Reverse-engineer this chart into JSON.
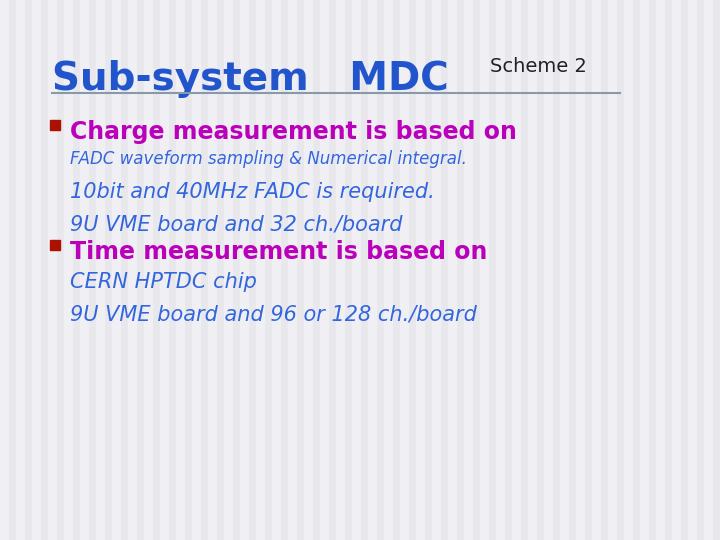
{
  "background_color": "#e8e8ec",
  "stripe_color": "#f0f0f4",
  "title_sub_system": "Sub-system   MDC",
  "title_scheme": "Scheme 2",
  "title_color_main": "#2255cc",
  "title_color_scheme": "#222222",
  "separator_color": "#8899aa",
  "bullet_color": "#aa1100",
  "bullet1_header": "Charge measurement is based on",
  "bullet1_header_color": "#bb00bb",
  "bullet1_line1": "FADC waveform sampling & Numerical integral.",
  "bullet1_line1_color": "#3366dd",
  "bullet1_line2": "10bit and 40MHz FADC is required.",
  "bullet1_line2_color": "#3366dd",
  "bullet1_line3": "9U VME board and 32 ch./board",
  "bullet1_line3_color": "#3366dd",
  "bullet2_header": "Time measurement is based on",
  "bullet2_header_color": "#bb00bb",
  "bullet2_line1": "CERN HPTDC chip",
  "bullet2_line1_color": "#3366dd",
  "bullet2_line2": "9U VME board and 96 or 128 ch./board",
  "bullet2_line2_color": "#3366dd",
  "title_fontsize": 28,
  "scheme_fontsize": 14,
  "header_fontsize": 17,
  "line1_fontsize": 12,
  "body_fontsize": 15
}
